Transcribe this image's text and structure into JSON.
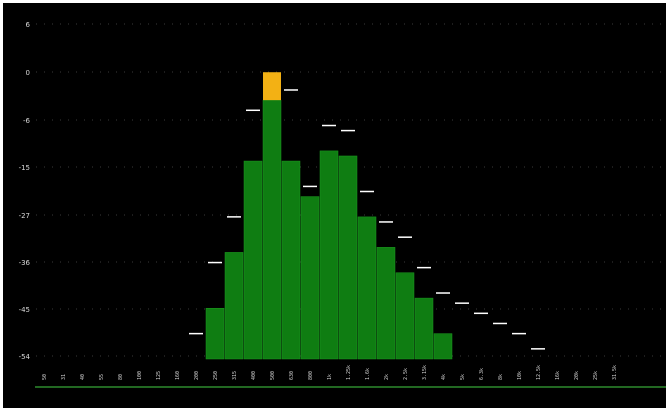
{
  "chart_data": {
    "type": "bar",
    "title": "",
    "xlabel": "",
    "ylabel": "",
    "yticks": [
      "6",
      "0",
      "-6",
      "-15",
      "-27",
      "-36",
      "-45",
      "-54"
    ],
    "ylim": [
      -60,
      6
    ],
    "categories": [
      "50",
      "31",
      "40",
      "55",
      "80",
      "100",
      "125",
      "160",
      "200",
      "250",
      "315",
      "400",
      "500",
      "630",
      "800",
      "1k",
      "1.25k",
      "1.6k",
      "2k",
      "2.5k",
      "3.15k",
      "4k",
      "5k",
      "6.3k",
      "8k",
      "10k",
      "12.5k",
      "16k",
      "20k",
      "25k",
      "31.5k"
    ],
    "values": [
      -60,
      -60,
      -60,
      -60,
      -60,
      -60,
      -60,
      -60,
      -60,
      -50,
      -39,
      -21,
      -9,
      -21,
      -28,
      -19,
      -20,
      -32,
      -38,
      -43,
      -48,
      -55,
      -60,
      -60,
      -60,
      -60,
      -60,
      -60,
      -60,
      -60,
      -60
    ],
    "peaks": [
      -60,
      -60,
      -60,
      -60,
      -60,
      -60,
      -60,
      -60,
      -55,
      -41,
      -32,
      -11,
      -5.5,
      -7,
      -26,
      -14,
      -15,
      -27,
      -33,
      -36,
      -42,
      -47,
      -49,
      -51,
      -53,
      -55,
      -58,
      -60,
      -60,
      -60,
      -60
    ],
    "overload": [
      null,
      null,
      null,
      null,
      null,
      null,
      null,
      null,
      null,
      null,
      null,
      null,
      -3.5,
      null,
      null,
      null,
      null,
      null,
      null,
      null,
      null,
      null,
      null,
      null,
      null,
      null,
      null,
      null,
      null,
      null,
      null
    ],
    "colors": {
      "bar": "#0f7d12",
      "bar_edge": "#1d9b20",
      "peak": "#ffffff",
      "overload": "#f3b114",
      "background": "#000000"
    },
    "grid": true,
    "legend": "none"
  }
}
